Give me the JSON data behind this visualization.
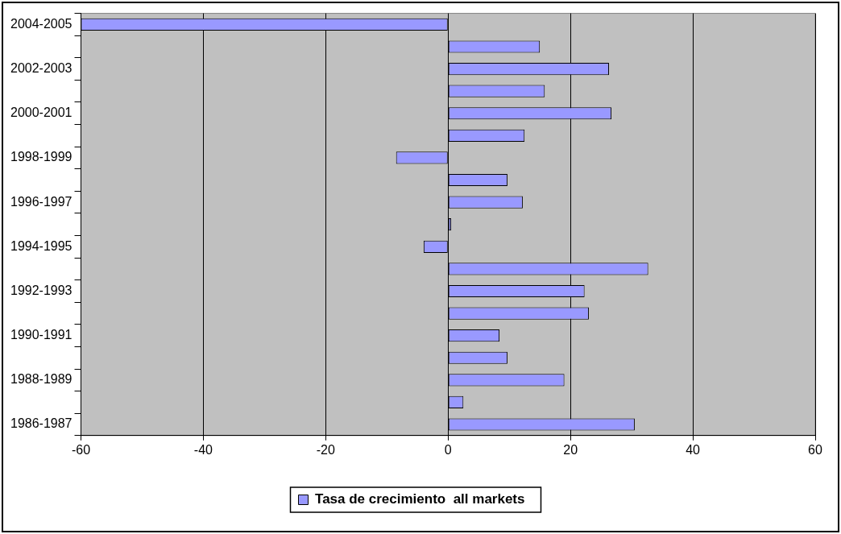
{
  "chart_data": {
    "type": "bar",
    "orientation": "horizontal",
    "categories": [
      "2004-2005",
      null,
      "2002-2003",
      null,
      "2000-2001",
      null,
      "1998-1999",
      null,
      "1996-1997",
      null,
      "1994-1995",
      null,
      "1992-1993",
      null,
      "1990-1991",
      null,
      "1988-1989",
      null,
      "1986-1987"
    ],
    "series": [
      {
        "name": "Tasa de crecimiento  all markets",
        "color": "#9999ff",
        "values": [
          -60,
          15,
          26.3,
          15.8,
          26.7,
          12.5,
          -8.5,
          9.7,
          12.2,
          0.5,
          -4,
          32.7,
          22.3,
          23,
          8.4,
          9.7,
          19,
          2.5,
          30.5
        ]
      }
    ],
    "xlim": [
      -60,
      60
    ],
    "xticks": [
      -60,
      -40,
      -20,
      0,
      20,
      40,
      60
    ],
    "grid": "x",
    "legend": "bottom"
  }
}
